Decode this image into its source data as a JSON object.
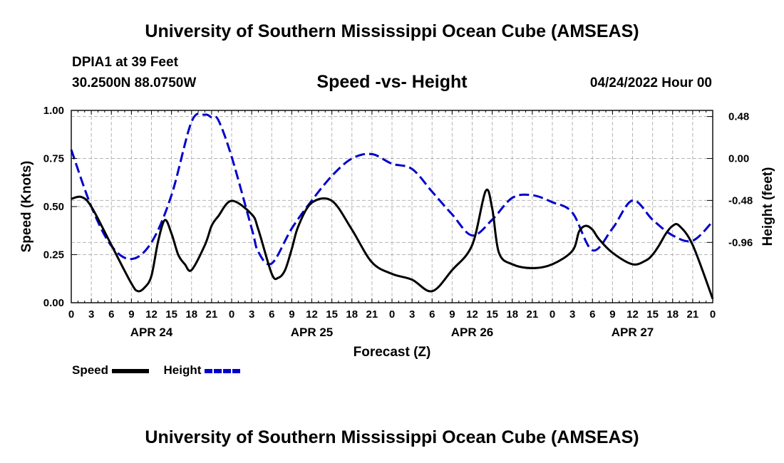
{
  "header": {
    "title": "University of Southern Mississippi Ocean Cube (AMSEAS)",
    "station": "DPIA1 at 39 Feet",
    "location": "30.2500N  88.0750W",
    "date": "04/24/2022 Hour 00"
  },
  "footer": {
    "title": "University of Southern Mississippi Ocean Cube (AMSEAS)"
  },
  "chart_data": {
    "type": "line",
    "title": "Speed -vs- Height",
    "xlabel": "Forecast (Z)",
    "ylabel": "Speed (Knots)",
    "y2label": "Height (feet)",
    "xlim": [
      0,
      96
    ],
    "ylim": [
      0,
      1.0
    ],
    "y2lim": [
      -1.65,
      0.55
    ],
    "x_ticks": [
      0,
      3,
      6,
      9,
      12,
      15,
      18,
      21,
      24,
      27,
      30,
      33,
      36,
      39,
      42,
      45,
      48,
      51,
      54,
      57,
      60,
      63,
      66,
      69,
      72,
      75,
      78,
      81,
      84,
      87,
      90,
      93,
      96
    ],
    "x_tick_labels": [
      "0",
      "3",
      "6",
      "9",
      "12",
      "15",
      "18",
      "21",
      "0",
      "3",
      "6",
      "9",
      "12",
      "15",
      "18",
      "21",
      "0",
      "3",
      "6",
      "9",
      "12",
      "15",
      "18",
      "21",
      "0",
      "3",
      "6",
      "9",
      "12",
      "15",
      "18",
      "21",
      "0"
    ],
    "y_ticks": [
      0.0,
      0.25,
      0.5,
      0.75,
      1.0
    ],
    "y_tick_labels": [
      "0.00",
      "0.25",
      "0.50",
      "0.75",
      "1.00"
    ],
    "y2_ticks": [
      0.48,
      0.0,
      -0.48,
      -0.96
    ],
    "y2_tick_labels": [
      "0.48",
      "0.00",
      "-0.48",
      "-0.96"
    ],
    "day_labels": [
      {
        "x": 12,
        "label": "APR 24"
      },
      {
        "x": 36,
        "label": "APR 25"
      },
      {
        "x": 60,
        "label": "APR 26"
      },
      {
        "x": 84,
        "label": "APR 27"
      }
    ],
    "grid": true,
    "legend_position": "bottom-left",
    "series": [
      {
        "name": "Speed",
        "axis": "left",
        "color": "#000000",
        "dash": "solid",
        "x": [
          0,
          1.5,
          3,
          6,
          9,
          10,
          11,
          12,
          13,
          14,
          15,
          16,
          17,
          18,
          20,
          21,
          22,
          24,
          27,
          28,
          30,
          31,
          32,
          33,
          34,
          36,
          39,
          42,
          45,
          48,
          51,
          54,
          57,
          60,
          62,
          63,
          64,
          66,
          69,
          72,
          75,
          76,
          77,
          78,
          79,
          81,
          84,
          86,
          87,
          88,
          89,
          90,
          91,
          93,
          96
        ],
        "values": [
          0.54,
          0.55,
          0.5,
          0.3,
          0.1,
          0.06,
          0.08,
          0.14,
          0.32,
          0.43,
          0.36,
          0.25,
          0.2,
          0.17,
          0.3,
          0.4,
          0.45,
          0.53,
          0.46,
          0.38,
          0.15,
          0.13,
          0.17,
          0.28,
          0.4,
          0.52,
          0.53,
          0.38,
          0.21,
          0.15,
          0.12,
          0.06,
          0.17,
          0.3,
          0.58,
          0.49,
          0.26,
          0.2,
          0.18,
          0.2,
          0.27,
          0.37,
          0.4,
          0.38,
          0.33,
          0.26,
          0.2,
          0.22,
          0.25,
          0.3,
          0.36,
          0.4,
          0.4,
          0.3,
          0.02
        ]
      },
      {
        "name": "Height",
        "axis": "right",
        "color": "#0000cc",
        "dash": "dashed",
        "x": [
          0,
          3,
          6,
          9,
          12,
          15,
          18,
          20,
          21,
          22,
          24,
          27,
          28,
          30,
          33,
          36,
          39,
          42,
          45,
          48,
          51,
          54,
          57,
          60,
          63,
          66,
          69,
          72,
          75,
          78,
          81,
          84,
          87,
          90,
          93,
          96
        ],
        "values": [
          0.1,
          -0.55,
          -1.0,
          -1.15,
          -0.96,
          -0.42,
          0.42,
          0.5,
          0.47,
          0.44,
          0.02,
          -0.8,
          -1.07,
          -1.2,
          -0.8,
          -0.48,
          -0.2,
          0.0,
          0.05,
          -0.06,
          -0.12,
          -0.38,
          -0.64,
          -0.88,
          -0.7,
          -0.45,
          -0.42,
          -0.5,
          -0.62,
          -1.05,
          -0.8,
          -0.48,
          -0.7,
          -0.88,
          -0.94,
          -0.72
        ]
      }
    ]
  },
  "legend": {
    "items": [
      {
        "label": "Speed",
        "color": "#000000"
      },
      {
        "label": "Height",
        "color": "#0000cc"
      }
    ]
  }
}
